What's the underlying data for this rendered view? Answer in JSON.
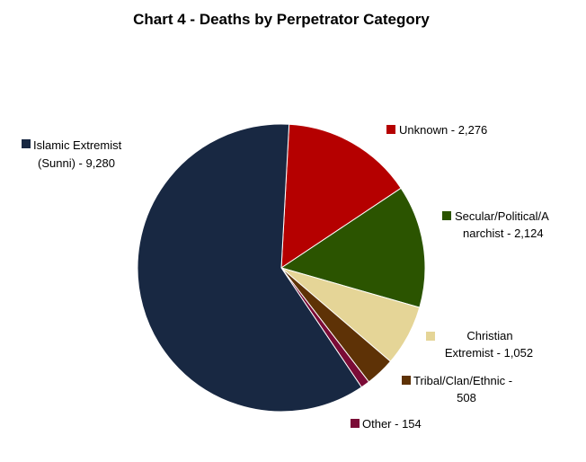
{
  "chart_data": {
    "type": "pie",
    "title": "Chart 4 - Deaths by Perpetrator Category",
    "slices": [
      {
        "label_lines": [
          "Islamic Extremist",
          "(Sunni) -  9,280"
        ],
        "value": 9280,
        "color": "#182842"
      },
      {
        "label_lines": [
          "Unknown -  2,276"
        ],
        "value": 2276,
        "color": "#b50000"
      },
      {
        "label_lines": [
          "Secular/Political/A",
          "narchist -  2,124"
        ],
        "value": 2124,
        "color": "#2b5400"
      },
      {
        "label_lines": [
          "Christian",
          "Extremist -  1,052"
        ],
        "value": 1052,
        "color": "#e5d597"
      },
      {
        "label_lines": [
          "Tribal/Clan/Ethnic -",
          "508"
        ],
        "value": 508,
        "color": "#5e3206"
      },
      {
        "label_lines": [
          "Other -  154"
        ],
        "value": 154,
        "color": "#7a0b36"
      }
    ]
  }
}
